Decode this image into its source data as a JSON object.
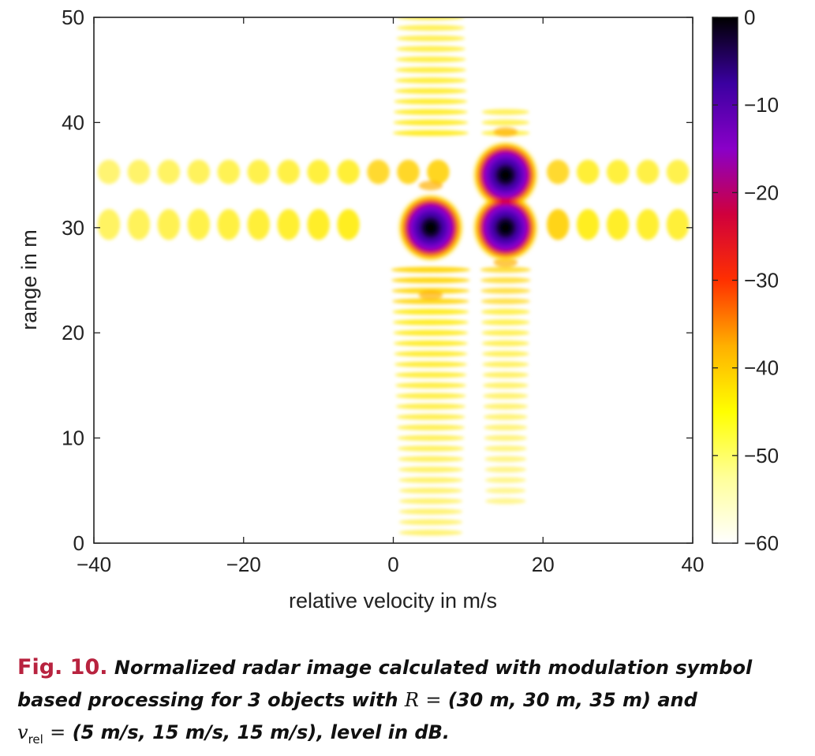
{
  "chart_data": {
    "type": "heatmap",
    "title": "",
    "xlabel": "relative velocity in m/s",
    "ylabel": "range in m",
    "xlim": [
      -40,
      40
    ],
    "ylim": [
      0,
      50
    ],
    "xticks": [
      -40,
      -20,
      0,
      20,
      40
    ],
    "yticks": [
      0,
      10,
      20,
      30,
      40,
      50
    ],
    "colorbar": {
      "label": "level in dB",
      "range": [
        -60,
        0
      ],
      "ticks": [
        0,
        -10,
        -20,
        -30,
        -40,
        -50,
        -60
      ],
      "colormap": [
        "#ffffff",
        "#ffff99",
        "#ffff00",
        "#ffb000",
        "#ff3000",
        "#d0003c",
        "#8a00c8",
        "#3a00a0",
        "#000000"
      ]
    },
    "targets": [
      {
        "range_m": 30,
        "velocity_mps": 5,
        "level_db": 0
      },
      {
        "range_m": 30,
        "velocity_mps": 15,
        "level_db": 0
      },
      {
        "range_m": 35,
        "velocity_mps": 15,
        "level_db": 0
      }
    ],
    "sidelobe_level_db_approx": -50
  },
  "caption": {
    "fig_label": "Fig. 10.",
    "line1": "Normalized radar image calculated with modulation symbol",
    "line2_prefix": "based processing for 3 objects with",
    "R_symbol": "R",
    "equals": "=",
    "R_values": "(30 m, 30 m, 35 m)",
    "and": "and",
    "v_symbol": "v",
    "v_sub": "rel",
    "v_values": "(5 m/s, 15 m/s, 15 m/s)",
    "suffix": ", level in dB."
  }
}
